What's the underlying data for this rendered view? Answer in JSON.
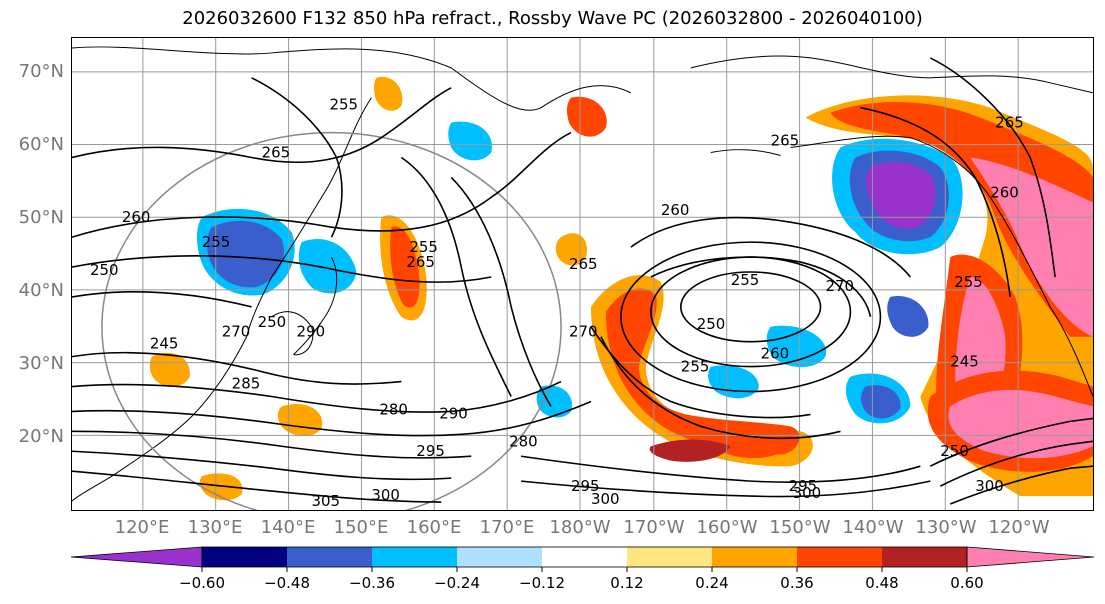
{
  "title": "2026032600 F132 850 hPa refract., Rossby Wave PC (2026032800 - 2026040100)",
  "lat_labels": [
    "70°N",
    "60°N",
    "50°N",
    "40°N",
    "30°N",
    "20°N"
  ],
  "lon_labels": [
    "120°E",
    "130°E",
    "140°E",
    "150°E",
    "160°E",
    "170°E",
    "180°W",
    "170°W",
    "160°W",
    "150°W",
    "140°W",
    "130°W",
    "120°W"
  ],
  "colorbar": {
    "colors": [
      "#9932cc",
      "#000080",
      "#3a5fcd",
      "#00bfff",
      "#b0e0ff",
      "#ffffff",
      "#ffe680",
      "#ffa500",
      "#ff4500",
      "#b22222",
      "#ff80b0"
    ],
    "tick_labels": [
      "−0.60",
      "−0.48",
      "−0.36",
      "−0.24",
      "−0.12",
      "0.12",
      "0.24",
      "0.36",
      "0.48",
      "0.60"
    ]
  },
  "contour_labels": [
    "255",
    "265",
    "260",
    "250",
    "255",
    "265",
    "255",
    "265",
    "260",
    "265",
    "270",
    "255",
    "250",
    "260",
    "255",
    "270",
    "255",
    "260",
    "265",
    "245",
    "270",
    "250",
    "245",
    "290",
    "285",
    "280",
    "290",
    "295",
    "280",
    "295",
    "300",
    "305",
    "300",
    "295",
    "300",
    "250",
    "300"
  ]
}
